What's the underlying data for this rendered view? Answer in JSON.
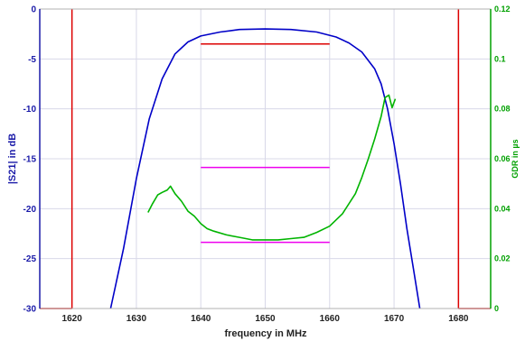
{
  "chart_data": {
    "type": "line",
    "title": "",
    "xlabel": "frequency in MHz",
    "ylabel": "|S21| in dB",
    "y2label": "GDR in µs",
    "xlim": [
      1615,
      1685
    ],
    "ylim": [
      -30,
      0
    ],
    "y2lim": [
      0,
      0.12
    ],
    "xticks": [
      "1620",
      "1630",
      "1640",
      "1650",
      "1660",
      "1670",
      "1680"
    ],
    "yticks": [
      "0",
      "-5",
      "-10",
      "-15",
      "-20",
      "-25",
      "-30"
    ],
    "y2ticks": [
      "0.12",
      "0.1",
      "0.08",
      "0.06",
      "0.04",
      "0.02",
      "0"
    ],
    "grid": true,
    "colors": {
      "s21": "#0000c8",
      "gdr": "#00b400",
      "limits": "#dd0000",
      "gdr_limits": "#ee00ee",
      "left_axis": "#1a1aa8",
      "right_axis": "#00a000",
      "grid": "#d8d8e8"
    },
    "series": [
      {
        "axis": "left",
        "color": "#0000c8",
        "x": [
          1626,
          1628,
          1630,
          1632,
          1634,
          1636,
          1638,
          1640,
          1643,
          1646,
          1650,
          1654,
          1658,
          1661,
          1663,
          1665,
          1667,
          1668,
          1669,
          1670,
          1671,
          1672,
          1673,
          1674
        ],
        "y": [
          -30,
          -24,
          -17,
          -11,
          -7,
          -4.5,
          -3.3,
          -2.7,
          -2.3,
          -2.05,
          -2,
          -2.05,
          -2.3,
          -2.8,
          -3.4,
          -4.3,
          -6,
          -7.5,
          -10,
          -13.5,
          -17.5,
          -22,
          -26,
          -30
        ]
      },
      {
        "axis": "right",
        "color": "#00b400",
        "x": [
          1631.8,
          1632.5,
          1633.3,
          1634,
          1634.8,
          1635.3,
          1636,
          1637,
          1638,
          1639,
          1640,
          1641,
          1642,
          1644,
          1646,
          1648,
          1650,
          1652,
          1654,
          1656,
          1658,
          1660,
          1662,
          1664,
          1665,
          1666,
          1667,
          1668,
          1668.6,
          1669.2,
          1669.7,
          1670.2
        ],
        "y": [
          0.0385,
          0.042,
          0.0455,
          0.0465,
          0.0475,
          0.049,
          0.046,
          0.043,
          0.039,
          0.037,
          0.034,
          0.032,
          0.031,
          0.0295,
          0.0285,
          0.0275,
          0.0275,
          0.0275,
          0.028,
          0.0285,
          0.0305,
          0.033,
          0.038,
          0.046,
          0.0525,
          0.06,
          0.068,
          0.077,
          0.0845,
          0.0855,
          0.0805,
          0.084
        ]
      }
    ],
    "limit_lines": {
      "left_axis": [
        {
          "x": [
            1615,
            1620
          ],
          "y": [
            -30,
            -30
          ]
        },
        {
          "x": [
            1620,
            1620
          ],
          "y": [
            -30,
            0
          ]
        },
        {
          "x": [
            1640,
            1660
          ],
          "y": [
            -3.5,
            -3.5
          ]
        },
        {
          "x": [
            1680,
            1680
          ],
          "y": [
            -30,
            0
          ]
        },
        {
          "x": [
            1680,
            1685
          ],
          "y": [
            -30,
            -30
          ]
        }
      ],
      "right_axis": [
        {
          "x": [
            1640,
            1660
          ],
          "y": [
            0.0565,
            0.0565
          ]
        },
        {
          "x": [
            1640,
            1660
          ],
          "y": [
            0.0265,
            0.0265
          ]
        }
      ]
    }
  }
}
